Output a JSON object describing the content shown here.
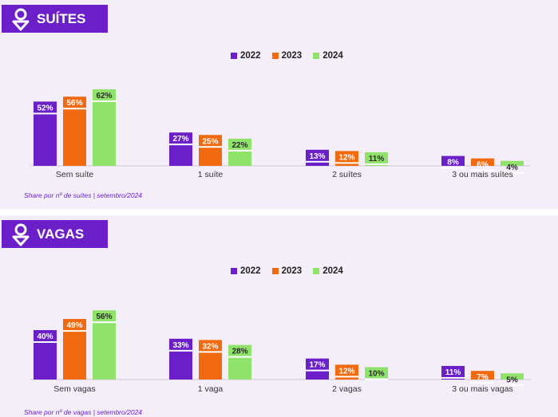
{
  "colors": {
    "2022": "#6a1fc9",
    "2023": "#f26a0f",
    "2024": "#8fe36a",
    "panel": "#f4eef9",
    "title_bg": "#6a1fc9"
  },
  "chart_data": [
    {
      "type": "bar",
      "title": "SUÍTES",
      "categories": [
        "Sem suíte",
        "1 suíte",
        "2 suítes",
        "3 ou mais suítes"
      ],
      "series": [
        {
          "name": "2022",
          "values": [
            52,
            27,
            13,
            8
          ],
          "labels": [
            "52%",
            "27%",
            "13%",
            "8%"
          ]
        },
        {
          "name": "2023",
          "values": [
            56,
            25,
            12,
            6
          ],
          "labels": [
            "56%",
            "25%",
            "12%",
            "6%"
          ]
        },
        {
          "name": "2024",
          "values": [
            62,
            22,
            11,
            4
          ],
          "labels": [
            "62%",
            "22%",
            "11%",
            "4%"
          ]
        }
      ],
      "source": "Share por nº de suítes | setembro/2024",
      "legend": "top-center",
      "grid": false
    },
    {
      "type": "bar",
      "title": "VAGAS",
      "categories": [
        "Sem vagas",
        "1 vaga",
        "2 vagas",
        "3 ou mais vagas"
      ],
      "series": [
        {
          "name": "2022",
          "values": [
            40,
            33,
            17,
            11
          ],
          "labels": [
            "40%",
            "33%",
            "17%",
            "11%"
          ]
        },
        {
          "name": "2023",
          "values": [
            49,
            32,
            12,
            7
          ],
          "labels": [
            "49%",
            "32%",
            "12%",
            "7%"
          ]
        },
        {
          "name": "2024",
          "values": [
            56,
            28,
            10,
            5
          ],
          "labels": [
            "56%",
            "28%",
            "10%",
            "5%"
          ]
        }
      ],
      "source": "Share por nº de vagas | setembro/2024",
      "legend": "top-center",
      "grid": false
    }
  ]
}
